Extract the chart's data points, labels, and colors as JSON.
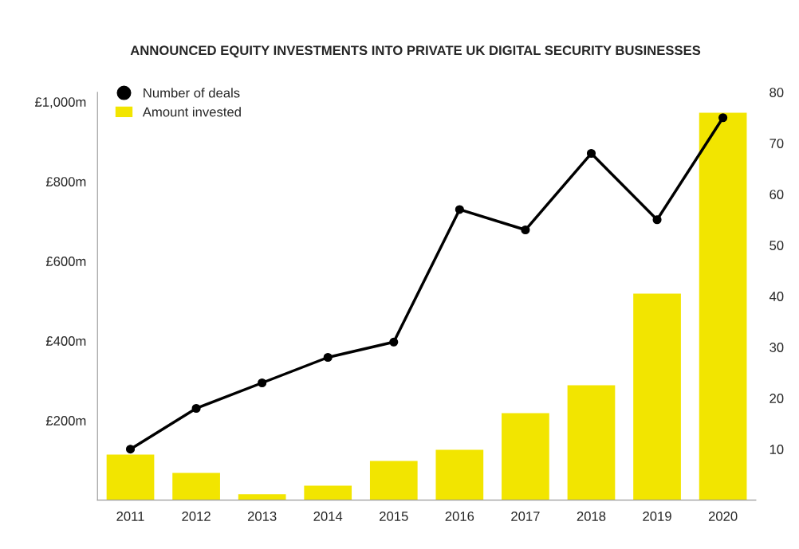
{
  "chart_data": {
    "type": "bar",
    "title": "ANNOUNCED EQUITY INVESTMENTS INTO PRIVATE UK DIGITAL SECURITY BUSINESSES",
    "categories": [
      "2011",
      "2012",
      "2013",
      "2014",
      "2015",
      "2016",
      "2017",
      "2018",
      "2019",
      "2020"
    ],
    "series": [
      {
        "name": "Amount invested",
        "color": "#f2e500",
        "values": [
          116,
          70,
          16,
          38,
          100,
          128,
          220,
          290,
          520,
          974
        ]
      },
      {
        "name": "Number of deals",
        "type": "line",
        "axis": "y2",
        "color": "#000000",
        "marker": "circle",
        "values": [
          10,
          18,
          23,
          28,
          31,
          57,
          53,
          68,
          55,
          75
        ]
      }
    ],
    "ylim": [
      0,
      1024
    ],
    "yticks": [
      {
        "value": 200,
        "label": "£200m"
      },
      {
        "value": 400,
        "label": "£400m"
      },
      {
        "value": 600,
        "label": "£600m"
      },
      {
        "value": 800,
        "label": "£800m"
      },
      {
        "value": 1000,
        "label": "£1,000m"
      }
    ],
    "y2lim": [
      0,
      80
    ],
    "y2ticks": [
      10,
      20,
      30,
      40,
      50,
      60,
      70,
      80
    ],
    "grid": false,
    "legend": "top left"
  }
}
